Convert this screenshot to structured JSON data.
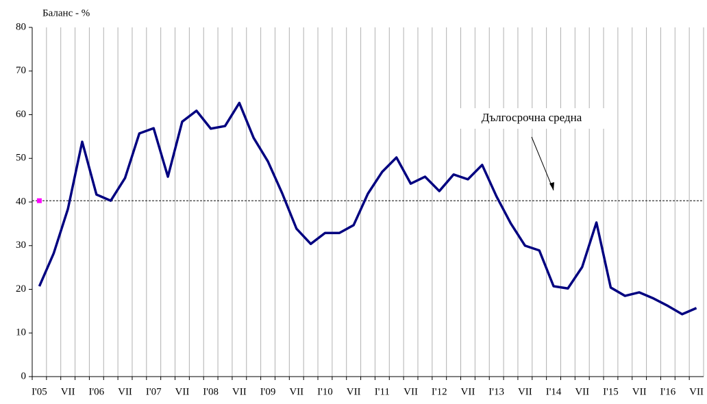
{
  "chart_data": {
    "type": "line",
    "y_axis_label": "Баланс - %",
    "annotation": "Дългосрочна средна",
    "categories": [
      "I'05",
      null,
      "VII",
      null,
      "I'06",
      null,
      "VII",
      null,
      "I'07",
      null,
      "VII",
      null,
      "I'08",
      null,
      "VII",
      null,
      "I'09",
      null,
      "VII",
      null,
      "I'10",
      null,
      "VII",
      null,
      "I'11",
      null,
      "VII",
      null,
      "I'12",
      null,
      "VII",
      null,
      "I'13",
      null,
      "VII",
      null,
      "I'14",
      null,
      "VII",
      null,
      "I'15",
      null,
      "VII",
      null,
      "I'16",
      null,
      "VII"
    ],
    "series": [
      {
        "color": "#000080",
        "values": [
          20.7,
          28.2,
          38.4,
          53.8,
          41.7,
          40.3,
          45.5,
          55.7,
          56.9,
          45.8,
          58.4,
          60.9,
          56.8,
          57.4,
          62.7,
          54.7,
          49.3,
          42.0,
          33.9,
          30.4,
          32.9,
          32.9,
          34.7,
          41.9,
          46.9,
          50.2,
          44.2,
          45.8,
          42.5,
          46.3,
          45.2,
          48.5,
          41.3,
          35.1,
          30.0,
          28.9,
          20.7,
          20.2,
          25.1,
          35.3,
          20.4,
          18.5,
          19.3,
          17.9,
          16.2,
          14.3,
          15.7
        ]
      }
    ],
    "long_term_average": 40.3,
    "average_marker_color": "#ff00ff",
    "ylim": [
      0,
      80
    ],
    "yticks": [
      0,
      10,
      20,
      30,
      40,
      50,
      60,
      70,
      80
    ],
    "vertical_grid": true
  }
}
